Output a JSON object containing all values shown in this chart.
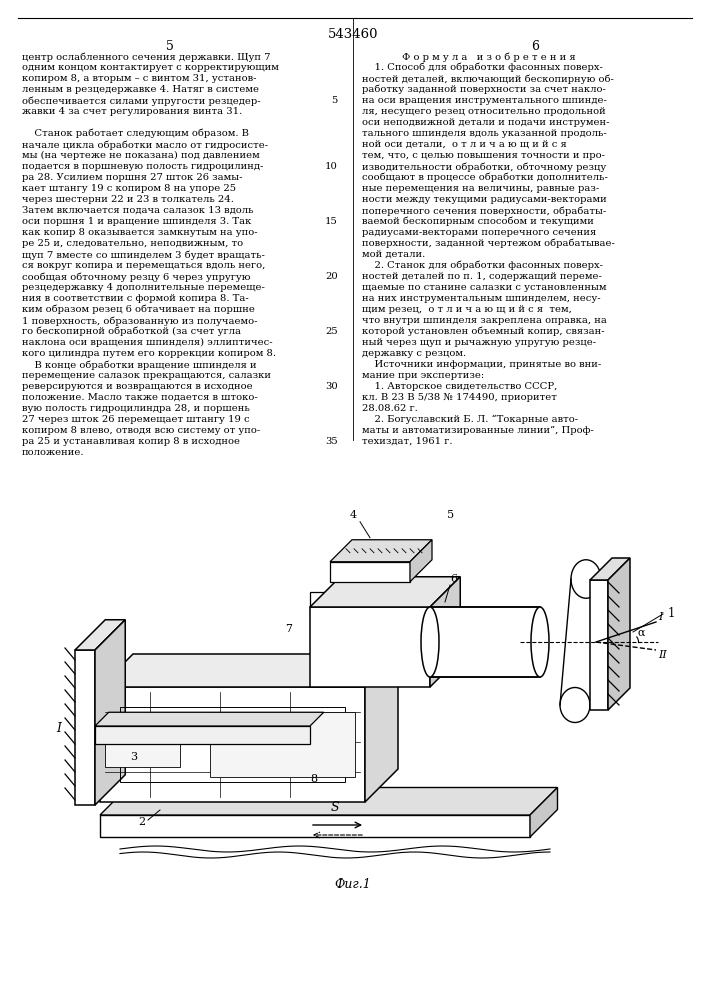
{
  "patent_number": "543460",
  "page_left": "5",
  "page_right": "6",
  "left_col_lines": [
    [
      "центр ослабленного сечения державки. Щуп 7",
      ""
    ],
    [
      "одним концом контактирует с корректирующим",
      ""
    ],
    [
      "копиром 8, а вторым – с винтом 31, установ-",
      ""
    ],
    [
      "ленным в резцедержавке 4. Натяг в системе",
      ""
    ],
    [
      "обеспечивается силами упругости резцедер-",
      "5"
    ],
    [
      "жавки 4 за счет регулирования винта 31.",
      ""
    ],
    [
      "",
      ""
    ],
    [
      "    Станок работает следующим образом. В",
      ""
    ],
    [
      "начале цикла обработки масло от гидросисте-",
      ""
    ],
    [
      "мы (на чертеже не показана) под давлением",
      ""
    ],
    [
      "подается в поршневую полость гидроцилинд-",
      "10"
    ],
    [
      "ра 28. Усилием поршня 27 шток 26 замы-",
      ""
    ],
    [
      "кает штангу 19 с копиром 8 на упоре 25",
      ""
    ],
    [
      "через шестерни 22 и 23 в толкатель 24.",
      ""
    ],
    [
      "Затем включается подача салазок 13 вдоль",
      ""
    ],
    [
      "оси поршня 1 и вращение шпинделя 3. Так",
      "15"
    ],
    [
      "как копир 8 оказывается замкнутым на упо-",
      ""
    ],
    [
      "ре 25 и, следовательно, неподвижным, то",
      ""
    ],
    [
      "щуп 7 вместе со шпинделем 3 будет вращать-",
      ""
    ],
    [
      "ся вокруг копира и перемещаться вдоль него,",
      ""
    ],
    [
      "сообщая обточному резцу 6 через упругую",
      "20"
    ],
    [
      "резцедержавку 4 дополнительные перемеще-",
      ""
    ],
    [
      "ния в соответствии с формой копира 8. Та-",
      ""
    ],
    [
      "ким образом резец 6 обтачивает на поршне",
      ""
    ],
    [
      "1 поверхность, образованную из получаемо-",
      ""
    ],
    [
      "го бескопирной обработкой (за счет угла",
      "25"
    ],
    [
      "наклона оси вращения шпинделя) эллиптичес-",
      ""
    ],
    [
      "кого цилиндра путем его коррекции копиром 8.",
      ""
    ],
    [
      "    В конце обработки вращение шпинделя и",
      ""
    ],
    [
      "перемещение салазок прекращаются, салазки",
      ""
    ],
    [
      "реверсируются и возвращаются в исходное",
      "30"
    ],
    [
      "положение. Масло также подается в штоко-",
      ""
    ],
    [
      "вую полость гидроцилиндра 28, и поршень",
      ""
    ],
    [
      "27 через шток 26 перемещает штангу 19 с",
      ""
    ],
    [
      "копиром 8 влево, отводя всю систему от упо-",
      ""
    ],
    [
      "ра 25 и устанавливая копир 8 в исходное",
      "35"
    ],
    [
      "положение.",
      ""
    ]
  ],
  "right_col_header": "Ф о р м у л а   и з о б р е т е н и я",
  "right_col_lines": [
    [
      "    1. Способ для обработки фасонных поверх-",
      ""
    ],
    [
      "ностей деталей, включающий бескопирную об-",
      ""
    ],
    [
      "работку заданной поверхности за счет накло-",
      ""
    ],
    [
      "на оси вращения инструментального шпинде-",
      ""
    ],
    [
      "ля, несущего резец относительно продольной",
      ""
    ],
    [
      "оси неподвижной детали и подачи инструмен-",
      ""
    ],
    [
      "тального шпинделя вдоль указанной продоль-",
      ""
    ],
    [
      "ной оси детали,  о т л и ч а ю щ и й с я",
      ""
    ],
    [
      "тем, что, с целью повышения точности и про-",
      ""
    ],
    [
      "изводительности обработки, обточному резцу",
      ""
    ],
    [
      "сообщают в процессе обработки дополнитель-",
      ""
    ],
    [
      "ные перемещения на величины, равные раз-",
      ""
    ],
    [
      "ности между текущими радиусами-векторами",
      ""
    ],
    [
      "поперечного сечения поверхности, обрабаты-",
      ""
    ],
    [
      "ваемой бескопирным способом и текущими",
      ""
    ],
    [
      "радиусами-векторами поперечного сечения",
      ""
    ],
    [
      "поверхности, заданной чертежом обрабатывае-",
      ""
    ],
    [
      "мой детали.",
      ""
    ],
    [
      "    2. Станок для обработки фасонных поверх-",
      ""
    ],
    [
      "ностей деталей по п. 1, содержащий переме-",
      ""
    ],
    [
      "щаемые по станине салазки с установленным",
      ""
    ],
    [
      "на них инструментальным шпинделем, несу-",
      ""
    ],
    [
      "щим резец,  о т л и ч а ю щ и й с я  тем,",
      ""
    ],
    [
      "что внутри шпинделя закреплена оправка, на",
      ""
    ],
    [
      "которой установлен объемный копир, связан-",
      ""
    ],
    [
      "ный через щуп и рычажную упругую резце-",
      ""
    ],
    [
      "державку с резцом.",
      ""
    ],
    [
      "    Источники информации, принятые во вни-",
      ""
    ],
    [
      "мание при экспертизе:",
      ""
    ],
    [
      "    1. Авторское свидетельство СССР,",
      ""
    ],
    [
      "кл. В 23 В 5/38 № 174490, приоритет",
      ""
    ],
    [
      "28.08.62 г.",
      ""
    ],
    [
      "    2. Богуславский Б. Л. “Токарные авто-",
      ""
    ],
    [
      "маты и автоматизированные линии”, Проф-",
      ""
    ],
    [
      "техиздат, 1961 г.",
      ""
    ]
  ],
  "figure_caption": "Фиг.1",
  "bg_color": "#ffffff",
  "text_color": "#000000"
}
